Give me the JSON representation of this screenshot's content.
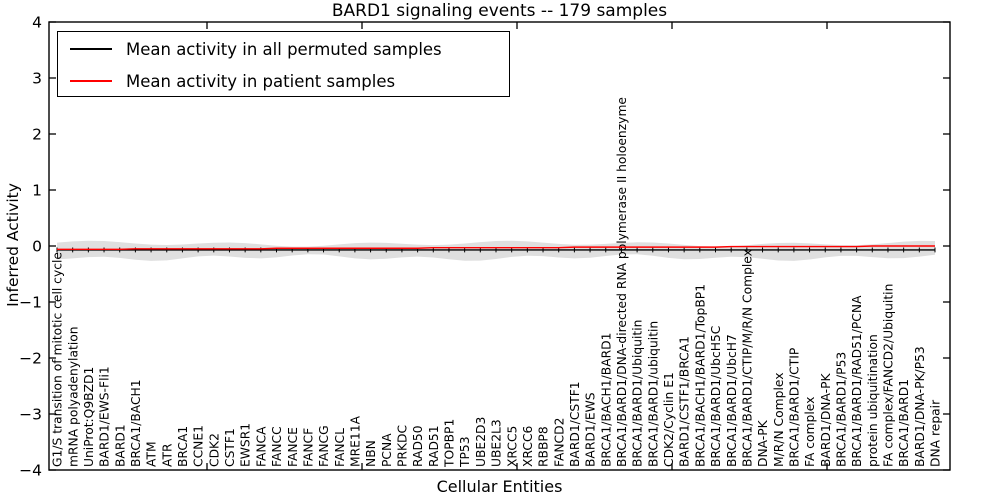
{
  "title": "BARD1 signaling events -- 179 samples",
  "axes": {
    "ylabel": "Inferred Activity",
    "xlabel": "Cellular Entities",
    "ytick_labels": [
      "4",
      "3",
      "2",
      "1",
      "0",
      "−1",
      "−2",
      "−3",
      "−4"
    ]
  },
  "legend": {
    "items": [
      {
        "label": "Mean activity in all permuted samples",
        "color": "#000000"
      },
      {
        "label": "Mean activity in patient samples",
        "color": "#ff0000"
      }
    ]
  },
  "chart_data": {
    "type": "line",
    "title": "BARD1 signaling events -- 179 samples",
    "xlabel": "Cellular Entities",
    "ylabel": "Inferred Activity",
    "ylim": [
      -4,
      4
    ],
    "grid": false,
    "legend_position": "upper left",
    "categories": [
      "G1/S transition of mitotic cell cycle",
      "mRNA polyadenylation",
      "UniProt:Q9BZD1",
      "BARD1/EWS-Fli1",
      "BARD1",
      "BRCA1/BACH1",
      "ATM",
      "ATR",
      "BRCA1",
      "CCNE1",
      "CDK2",
      "CSTF1",
      "EWSR1",
      "FANCA",
      "FANCC",
      "FANCE",
      "FANCF",
      "FANCG",
      "FANCL",
      "MRE11A",
      "NBN",
      "PCNA",
      "PRKDC",
      "RAD50",
      "RAD51",
      "TOPBP1",
      "TP53",
      "UBE2D3",
      "UBE2L3",
      "XRCC5",
      "XRCC6",
      "RBBP8",
      "FANCD2",
      "BARD1/CSTF1",
      "BARD1/EWS",
      "BRCA1/BACH1/BARD1",
      "BRCA1/BARD1/DNA-directed RNA polymerase II holoenzyme",
      "BRCA1/BARD1/Ubiquitin",
      "BRCA1/BARD1/ubiquitin",
      "CDK2/Cyclin E1",
      "BARD1/CSTF1/BRCA1",
      "BRCA1/BACH1/BARD1/TopBP1",
      "BRCA1/BARD1/UbcH5C",
      "BRCA1/BARD1/UbcH7",
      "BRCA1/BARD1/CTIP/M/R/N Complex",
      "DNA-PK",
      "M/R/N Complex",
      "BRCA1/BARD1/CTIP",
      "FA complex",
      "BARD1/DNA-PK",
      "BRCA1/BARD1/P53",
      "BRCA1/BARD1/RAD51/PCNA",
      "protein ubiquitination",
      "FA complex/FANCD2/Ubiquitin",
      "BRCA1/BARD1",
      "BARD1/DNA-PK/P53",
      "DNA repair"
    ],
    "series": [
      {
        "name": "Mean activity in all permuted samples",
        "color": "#000000",
        "values": [
          -0.07,
          -0.07,
          -0.07,
          -0.07,
          -0.07,
          -0.07,
          -0.07,
          -0.07,
          -0.07,
          -0.07,
          -0.07,
          -0.07,
          -0.07,
          -0.07,
          -0.07,
          -0.07,
          -0.07,
          -0.07,
          -0.07,
          -0.07,
          -0.07,
          -0.07,
          -0.07,
          -0.07,
          -0.07,
          -0.07,
          -0.07,
          -0.07,
          -0.07,
          -0.07,
          -0.07,
          -0.07,
          -0.07,
          -0.07,
          -0.07,
          -0.07,
          -0.07,
          -0.07,
          -0.07,
          -0.07,
          -0.07,
          -0.07,
          -0.07,
          -0.07,
          -0.07,
          -0.07,
          -0.07,
          -0.07,
          -0.07,
          -0.07,
          -0.07,
          -0.07,
          -0.07,
          -0.07,
          -0.07,
          -0.07,
          -0.07
        ]
      },
      {
        "name": "Mean activity in patient samples",
        "color": "#ff0000",
        "values": [
          -0.06,
          -0.06,
          -0.06,
          -0.06,
          -0.06,
          -0.05,
          -0.05,
          -0.05,
          -0.05,
          -0.05,
          -0.05,
          -0.05,
          -0.05,
          -0.05,
          -0.04,
          -0.04,
          -0.04,
          -0.04,
          -0.04,
          -0.04,
          -0.04,
          -0.04,
          -0.04,
          -0.04,
          -0.03,
          -0.03,
          -0.03,
          -0.03,
          -0.03,
          -0.03,
          -0.03,
          -0.03,
          -0.03,
          -0.02,
          -0.02,
          -0.02,
          -0.02,
          -0.02,
          -0.02,
          -0.02,
          -0.02,
          -0.02,
          -0.02,
          -0.01,
          -0.01,
          -0.01,
          -0.01,
          -0.01,
          -0.01,
          -0.01,
          -0.01,
          -0.01,
          0.0,
          0.0,
          0.0,
          0.0,
          0.0
        ]
      }
    ],
    "permuted_band": {
      "upper": 0.07,
      "lower": -0.2,
      "color": "#d9d9d9"
    }
  }
}
